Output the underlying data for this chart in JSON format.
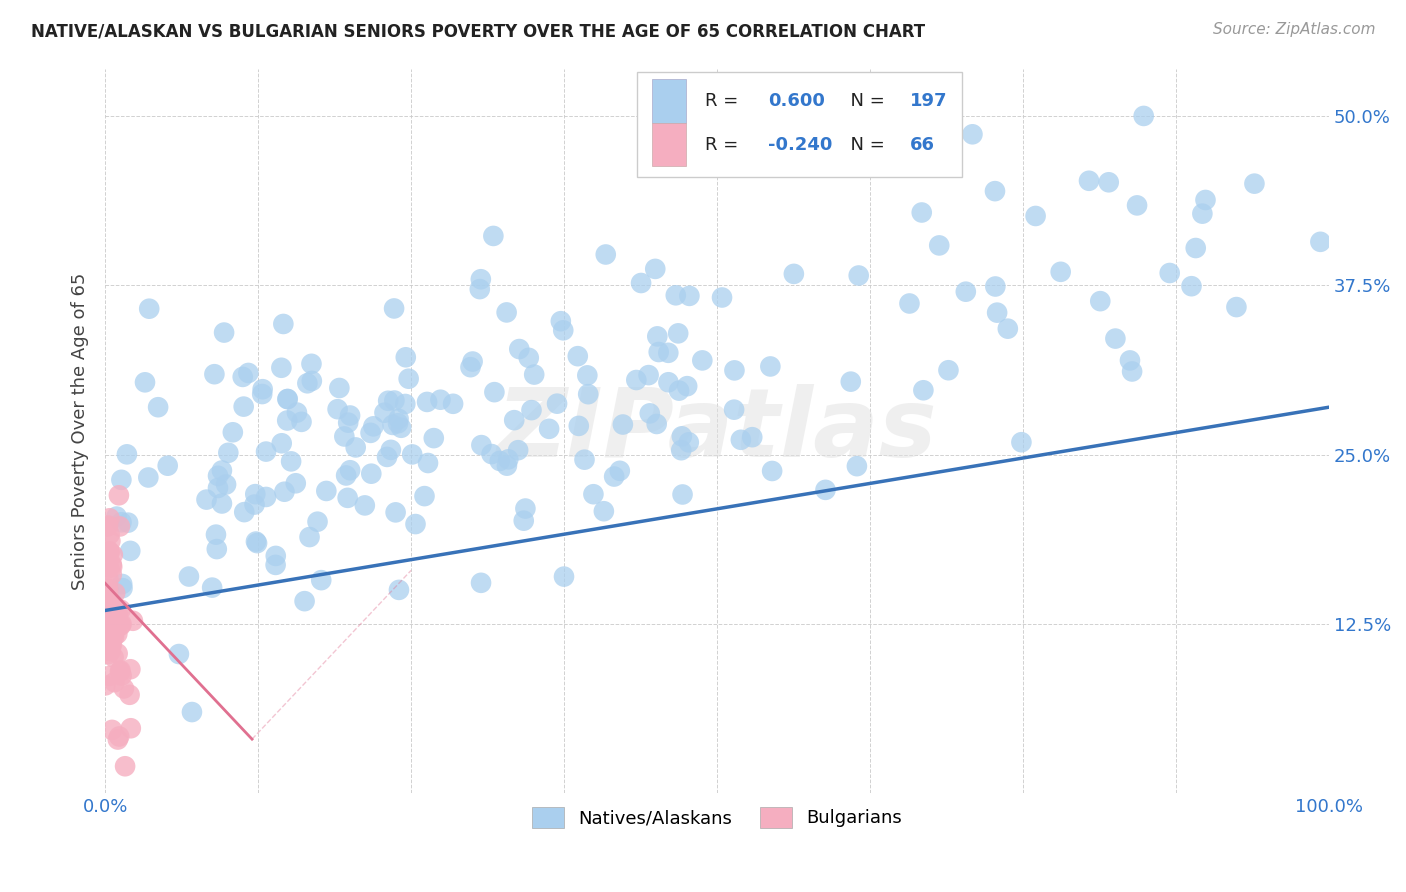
{
  "title": "NATIVE/ALASKAN VS BULGARIAN SENIORS POVERTY OVER THE AGE OF 65 CORRELATION CHART",
  "source": "Source: ZipAtlas.com",
  "ylabel": "Seniors Poverty Over the Age of 65",
  "xlim": [
    0.0,
    1.0
  ],
  "ylim": [
    0.0,
    0.535
  ],
  "xtick_positions": [
    0.0,
    0.125,
    0.25,
    0.375,
    0.5,
    0.625,
    0.75,
    0.875,
    1.0
  ],
  "xticklabels": [
    "0.0%",
    "",
    "",
    "",
    "",
    "",
    "",
    "",
    "100.0%"
  ],
  "ytick_positions": [
    0.0,
    0.125,
    0.25,
    0.375,
    0.5
  ],
  "yticklabels_right": [
    "",
    "12.5%",
    "25.0%",
    "37.5%",
    "50.0%"
  ],
  "native_color": "#aacfee",
  "bulgarian_color": "#f5aec0",
  "native_line_color": "#3872b8",
  "bulgarian_line_color": "#e07090",
  "watermark": "ZIPatlas",
  "background_color": "#ffffff",
  "grid_color": "#cccccc",
  "title_color": "#222222",
  "ylabel_color": "#444444",
  "tick_color": "#3377cc",
  "legend_text_color": "#222222",
  "legend_val_color": "#3377cc",
  "native_R": "0.600",
  "native_N": "197",
  "bulgarian_R": "-0.240",
  "bulgarian_N": "66",
  "native_line_x": [
    0.0,
    1.0
  ],
  "native_line_y": [
    0.135,
    0.285
  ],
  "bulgarian_line_x": [
    0.0,
    0.12
  ],
  "bulgarian_line_y": [
    0.155,
    0.04
  ]
}
